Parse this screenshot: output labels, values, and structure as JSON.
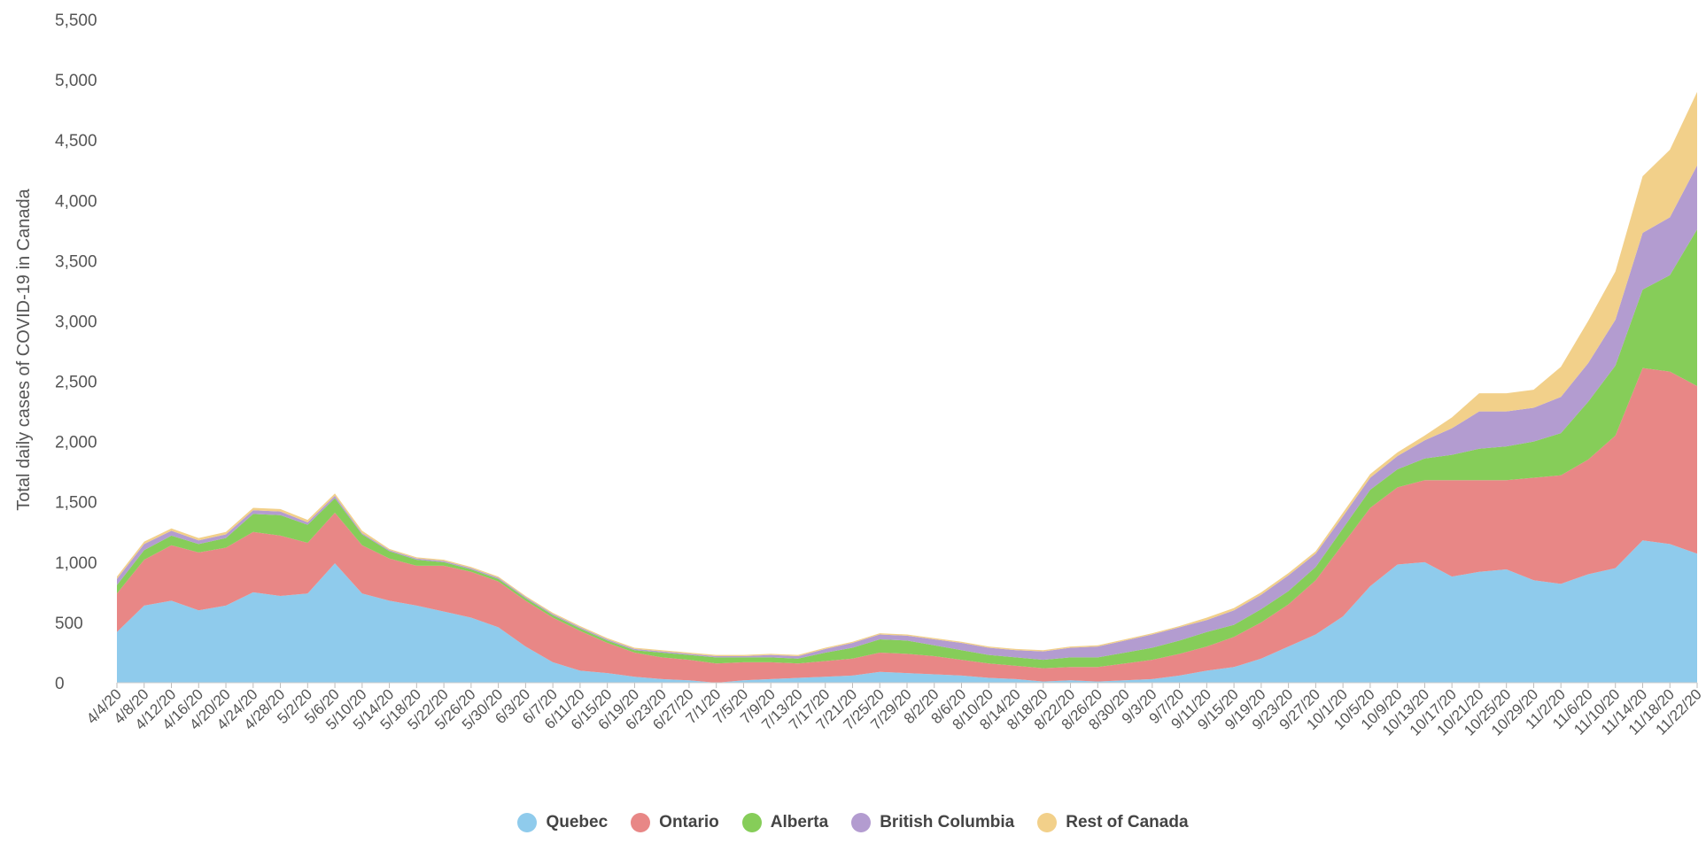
{
  "chart_data": {
    "type": "area",
    "stacked": true,
    "ylabel": "Total daily cases of COVID-19 in Canada",
    "xlabel": "",
    "ylim": [
      0,
      5500
    ],
    "yticks": [
      0,
      500,
      1000,
      1500,
      2000,
      2500,
      3000,
      3500,
      4000,
      4500,
      5000,
      5500
    ],
    "ytick_labels": [
      "0",
      "500",
      "1,000",
      "1,500",
      "2,000",
      "2,500",
      "3,000",
      "3,500",
      "4,000",
      "4,500",
      "5,000",
      "5,500"
    ],
    "grid": false,
    "legend_position": "bottom",
    "x": [
      "4/4/20",
      "4/8/20",
      "4/12/20",
      "4/16/20",
      "4/20/20",
      "4/24/20",
      "4/28/20",
      "5/2/20",
      "5/6/20",
      "5/10/20",
      "5/14/20",
      "5/18/20",
      "5/22/20",
      "5/26/20",
      "5/30/20",
      "6/3/20",
      "6/7/20",
      "6/11/20",
      "6/15/20",
      "6/19/20",
      "6/23/20",
      "6/27/20",
      "7/1/20",
      "7/5/20",
      "7/9/20",
      "7/13/20",
      "7/17/20",
      "7/21/20",
      "7/25/20",
      "7/29/20",
      "8/2/20",
      "8/6/20",
      "8/10/20",
      "8/14/20",
      "8/18/20",
      "8/22/20",
      "8/26/20",
      "8/30/20",
      "9/3/20",
      "9/7/20",
      "9/11/20",
      "9/15/20",
      "9/19/20",
      "9/23/20",
      "9/27/20",
      "10/1/20",
      "10/5/20",
      "10/9/20",
      "10/13/20",
      "10/17/20",
      "10/21/20",
      "10/25/20",
      "10/29/20",
      "11/2/20",
      "11/6/20",
      "11/10/20",
      "11/14/20",
      "11/18/20",
      "11/22/20"
    ],
    "series": [
      {
        "name": "Quebec",
        "color": "#8fcbec",
        "values": [
          420,
          640,
          680,
          600,
          640,
          750,
          720,
          740,
          990,
          740,
          680,
          640,
          590,
          540,
          460,
          300,
          170,
          100,
          80,
          50,
          30,
          20,
          0,
          20,
          30,
          40,
          50,
          60,
          90,
          80,
          70,
          60,
          40,
          30,
          10,
          20,
          10,
          20,
          30,
          60,
          100,
          130,
          200,
          300,
          400,
          550,
          800,
          980,
          1000,
          880,
          920,
          940,
          850,
          820,
          900,
          950,
          1180,
          1150,
          1070
        ]
      },
      {
        "name": "Ontario",
        "color": "#e88786",
        "values": [
          320,
          380,
          460,
          480,
          480,
          500,
          500,
          420,
          420,
          400,
          350,
          330,
          380,
          380,
          380,
          380,
          370,
          330,
          250,
          200,
          180,
          170,
          160,
          150,
          140,
          120,
          130,
          140,
          160,
          160,
          150,
          130,
          120,
          110,
          110,
          110,
          120,
          140,
          160,
          180,
          200,
          250,
          300,
          350,
          450,
          600,
          650,
          640,
          680,
          800,
          760,
          740,
          850,
          900,
          950,
          1100,
          1430,
          1430,
          1390
        ]
      },
      {
        "name": "Alberta",
        "color": "#86cd59",
        "values": [
          70,
          80,
          80,
          70,
          80,
          150,
          170,
          150,
          120,
          90,
          60,
          50,
          30,
          20,
          20,
          20,
          20,
          20,
          20,
          20,
          40,
          40,
          50,
          40,
          40,
          40,
          70,
          90,
          110,
          110,
          90,
          80,
          70,
          70,
          70,
          80,
          80,
          90,
          100,
          110,
          120,
          100,
          110,
          110,
          110,
          130,
          150,
          150,
          180,
          210,
          260,
          280,
          300,
          350,
          480,
          580,
          650,
          800,
          1300
        ]
      },
      {
        "name": "British Columbia",
        "color": "#b39cd0",
        "values": [
          50,
          50,
          40,
          30,
          30,
          30,
          30,
          20,
          20,
          10,
          10,
          10,
          10,
          10,
          10,
          10,
          10,
          10,
          10,
          10,
          10,
          10,
          10,
          10,
          20,
          20,
          30,
          40,
          40,
          40,
          50,
          60,
          60,
          60,
          70,
          80,
          90,
          100,
          110,
          110,
          100,
          120,
          120,
          130,
          110,
          100,
          100,
          110,
          150,
          220,
          310,
          290,
          280,
          300,
          320,
          380,
          470,
          480,
          530
        ]
      },
      {
        "name": "Rest of Canada",
        "color": "#f2d08a",
        "values": [
          20,
          20,
          20,
          20,
          20,
          20,
          20,
          20,
          20,
          20,
          10,
          10,
          10,
          10,
          10,
          10,
          10,
          10,
          10,
          10,
          10,
          10,
          10,
          10,
          10,
          10,
          10,
          10,
          10,
          10,
          10,
          10,
          10,
          10,
          10,
          10,
          10,
          10,
          10,
          10,
          20,
          20,
          20,
          20,
          20,
          30,
          30,
          30,
          40,
          90,
          150,
          150,
          150,
          250,
          350,
          400,
          470,
          560,
          610
        ]
      }
    ]
  }
}
